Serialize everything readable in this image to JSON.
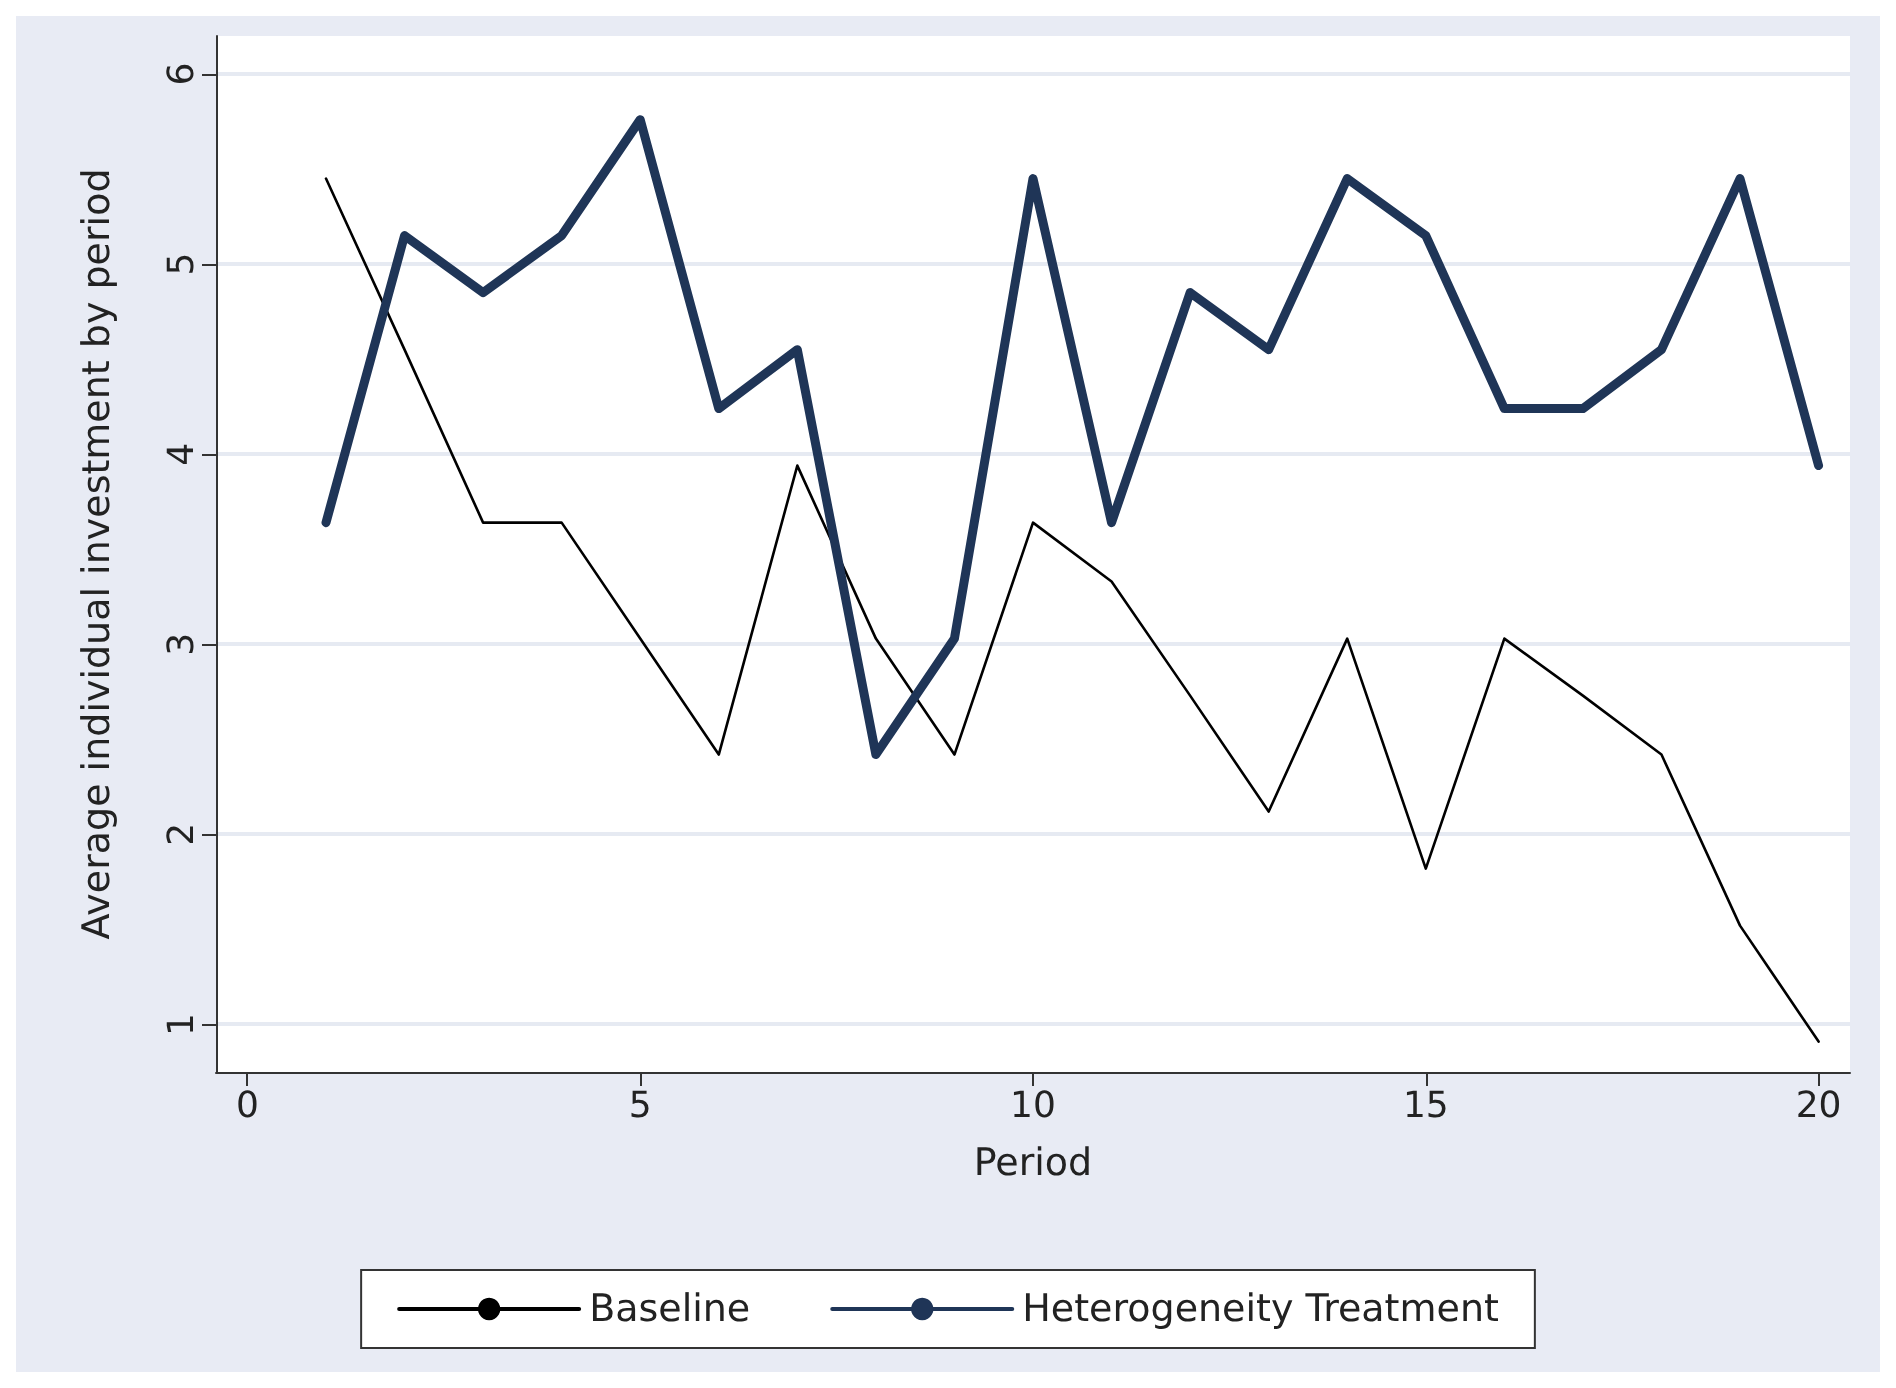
{
  "chart_data": {
    "type": "line",
    "xlabel": "Period",
    "ylabel": "Average individual investment by period",
    "x": [
      1,
      2,
      3,
      4,
      5,
      6,
      7,
      8,
      9,
      10,
      11,
      12,
      13,
      14,
      15,
      16,
      17,
      18,
      19,
      20
    ],
    "series": [
      {
        "name": "Baseline",
        "color": "#000000",
        "values": [
          5.45,
          4.55,
          3.64,
          3.64,
          3.03,
          2.42,
          3.94,
          3.03,
          2.42,
          3.64,
          3.33,
          2.73,
          2.12,
          3.03,
          1.82,
          3.03,
          2.73,
          2.42,
          1.52,
          0.91
        ]
      },
      {
        "name": "Heterogeneity Treatment",
        "color": "#1f3557",
        "values": [
          3.64,
          5.15,
          4.85,
          5.15,
          5.76,
          4.24,
          4.55,
          2.42,
          3.03,
          5.45,
          3.64,
          4.85,
          4.55,
          5.45,
          5.15,
          4.24,
          4.24,
          4.55,
          5.45,
          3.94
        ]
      }
    ],
    "xlim": [
      -0.4,
      20.4
    ],
    "xticks": [
      0,
      5,
      10,
      15,
      20
    ],
    "ylim": [
      0.75,
      6.2
    ],
    "yticks": [
      1,
      2,
      3,
      4,
      5,
      6
    ],
    "grid": "y",
    "legend": "bottom",
    "marker": "none",
    "line_style": "solid"
  }
}
